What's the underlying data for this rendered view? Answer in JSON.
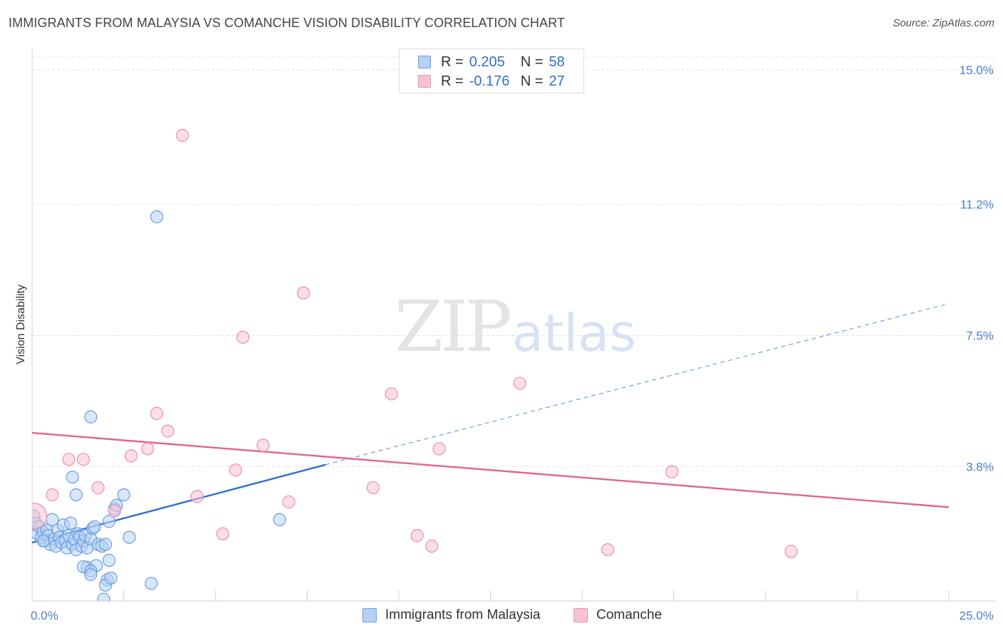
{
  "title": "IMMIGRANTS FROM MALAYSIA VS COMANCHE VISION DISABILITY CORRELATION CHART",
  "source": "Source: ZipAtlas.com",
  "watermark": {
    "zip": "ZIP",
    "atlas": "atlas"
  },
  "legend": {
    "r_label": "R =",
    "n_label": "N =",
    "rows": [
      {
        "r": "0.205",
        "n": "58"
      },
      {
        "r": "-0.176",
        "n": "27"
      }
    ]
  },
  "colors": {
    "blue_fill": "#b7d1f2",
    "blue_stroke": "#6a9de0",
    "blue_line": "#2f6fd6",
    "pink_fill": "#f7c3d4",
    "pink_stroke": "#ea8fb0",
    "pink_line": "#e2648f",
    "grid": "#e3e3e3",
    "tick_text": "#4a7fd0"
  },
  "chart_data": {
    "type": "scatter",
    "title": "IMMIGRANTS FROM MALAYSIA VS COMANCHE VISION DISABILITY CORRELATION CHART",
    "xlabel": "",
    "ylabel": "Vision Disability",
    "xlim": [
      0,
      25
    ],
    "ylim": [
      0,
      15
    ],
    "x_tick_labels": [
      "0.0%",
      "25.0%"
    ],
    "y_ticks": [
      3.8,
      7.5,
      11.2,
      15.0
    ],
    "y_tick_labels": [
      "3.8%",
      "7.5%",
      "11.2%",
      "15.0%"
    ],
    "series": [
      {
        "name": "Immigrants from Malaysia",
        "color": "blue",
        "r": 0.205,
        "n": 58,
        "trend": {
          "x": [
            0,
            8
          ],
          "y": [
            1.65,
            3.85
          ],
          "extend_to": [
            25,
            8.4
          ]
        },
        "points": [
          [
            0.05,
            2.4
          ],
          [
            0.1,
            2.2
          ],
          [
            0.15,
            1.9
          ],
          [
            0.2,
            2.1
          ],
          [
            0.25,
            1.8
          ],
          [
            0.3,
            1.95
          ],
          [
            0.35,
            1.7
          ],
          [
            0.4,
            2.0
          ],
          [
            0.45,
            1.85
          ],
          [
            0.5,
            1.6
          ],
          [
            0.55,
            2.3
          ],
          [
            0.6,
            1.75
          ],
          [
            0.65,
            1.55
          ],
          [
            0.7,
            2.0
          ],
          [
            0.75,
            1.8
          ],
          [
            0.8,
            1.65
          ],
          [
            0.85,
            2.15
          ],
          [
            0.9,
            1.7
          ],
          [
            0.95,
            1.5
          ],
          [
            1.0,
            1.85
          ],
          [
            1.05,
            2.2
          ],
          [
            1.1,
            1.6
          ],
          [
            1.15,
            1.75
          ],
          [
            1.2,
            1.45
          ],
          [
            1.25,
            1.9
          ],
          [
            1.3,
            1.8
          ],
          [
            1.35,
            1.55
          ],
          [
            1.4,
            1.7
          ],
          [
            1.45,
            1.85
          ],
          [
            1.5,
            1.5
          ],
          [
            1.1,
            3.5
          ],
          [
            1.2,
            3.0
          ],
          [
            1.6,
            1.75
          ],
          [
            1.65,
            2.05
          ],
          [
            1.7,
            2.1
          ],
          [
            1.8,
            1.6
          ],
          [
            1.9,
            1.55
          ],
          [
            2.0,
            1.6
          ],
          [
            1.5,
            0.95
          ],
          [
            1.4,
            0.97
          ],
          [
            1.75,
            1.0
          ],
          [
            1.6,
            0.85
          ],
          [
            2.1,
            2.25
          ],
          [
            2.25,
            2.6
          ],
          [
            2.3,
            2.7
          ],
          [
            2.5,
            3.0
          ],
          [
            2.65,
            1.8
          ],
          [
            1.6,
            0.75
          ],
          [
            2.1,
            1.15
          ],
          [
            2.05,
            0.6
          ],
          [
            2.0,
            0.45
          ],
          [
            3.25,
            0.5
          ],
          [
            1.95,
            0.05
          ],
          [
            1.6,
            5.2
          ],
          [
            6.75,
            2.3
          ],
          [
            3.4,
            10.85
          ],
          [
            2.15,
            0.65
          ],
          [
            0.3,
            1.7
          ]
        ]
      },
      {
        "name": "Comanche",
        "color": "pink",
        "r": -0.176,
        "n": 27,
        "trend": {
          "x": [
            0,
            25
          ],
          "y": [
            4.75,
            2.65
          ]
        },
        "points": [
          [
            0.05,
            2.4
          ],
          [
            0.55,
            3.0
          ],
          [
            1.0,
            4.0
          ],
          [
            1.4,
            4.0
          ],
          [
            1.8,
            3.2
          ],
          [
            2.25,
            2.55
          ],
          [
            2.7,
            4.1
          ],
          [
            3.15,
            4.3
          ],
          [
            3.4,
            5.3
          ],
          [
            3.7,
            4.8
          ],
          [
            4.1,
            13.15
          ],
          [
            4.5,
            2.95
          ],
          [
            5.2,
            1.9
          ],
          [
            5.55,
            3.7
          ],
          [
            5.75,
            7.45
          ],
          [
            6.3,
            4.4
          ],
          [
            7.0,
            2.8
          ],
          [
            7.4,
            8.7
          ],
          [
            9.3,
            3.2
          ],
          [
            9.8,
            5.85
          ],
          [
            10.5,
            1.85
          ],
          [
            10.9,
            1.55
          ],
          [
            11.1,
            4.3
          ],
          [
            13.3,
            6.15
          ],
          [
            15.7,
            1.45
          ],
          [
            17.45,
            3.65
          ],
          [
            20.7,
            1.4
          ]
        ]
      }
    ]
  },
  "bottom_legend": [
    {
      "label": "Immigrants from Malaysia"
    },
    {
      "label": "Comanche"
    }
  ]
}
